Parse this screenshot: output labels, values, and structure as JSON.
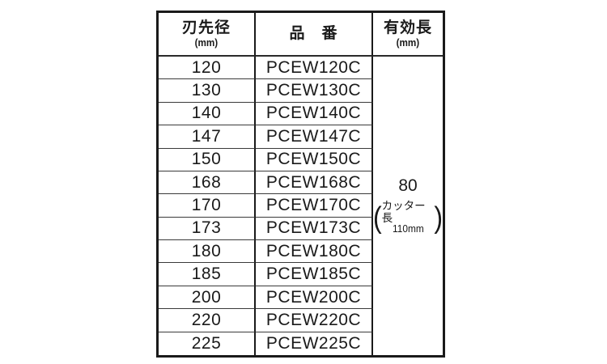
{
  "table": {
    "headers": [
      {
        "title": "刃先径",
        "unit": "(mm)"
      },
      {
        "title": "品　番",
        "unit": ""
      },
      {
        "title": "有効長",
        "unit": "(mm)"
      }
    ],
    "rows": [
      {
        "diameter": "120",
        "part_number": "PCEW120C"
      },
      {
        "diameter": "130",
        "part_number": "PCEW130C"
      },
      {
        "diameter": "140",
        "part_number": "PCEW140C"
      },
      {
        "diameter": "147",
        "part_number": "PCEW147C"
      },
      {
        "diameter": "150",
        "part_number": "PCEW150C"
      },
      {
        "diameter": "168",
        "part_number": "PCEW168C"
      },
      {
        "diameter": "170",
        "part_number": "PCEW170C"
      },
      {
        "diameter": "173",
        "part_number": "PCEW173C"
      },
      {
        "diameter": "180",
        "part_number": "PCEW180C"
      },
      {
        "diameter": "185",
        "part_number": "PCEW185C"
      },
      {
        "diameter": "200",
        "part_number": "PCEW200C"
      },
      {
        "diameter": "220",
        "part_number": "PCEW220C"
      },
      {
        "diameter": "225",
        "part_number": "PCEW225C"
      }
    ],
    "effective_length": {
      "value": "80",
      "paren_open": "(",
      "paren_close": ")",
      "note_line1": "カッター長",
      "note_line2": "110mm"
    }
  },
  "colors": {
    "background": "#ffffff",
    "text": "#1a1a1a",
    "border": "#1a1a1a"
  }
}
